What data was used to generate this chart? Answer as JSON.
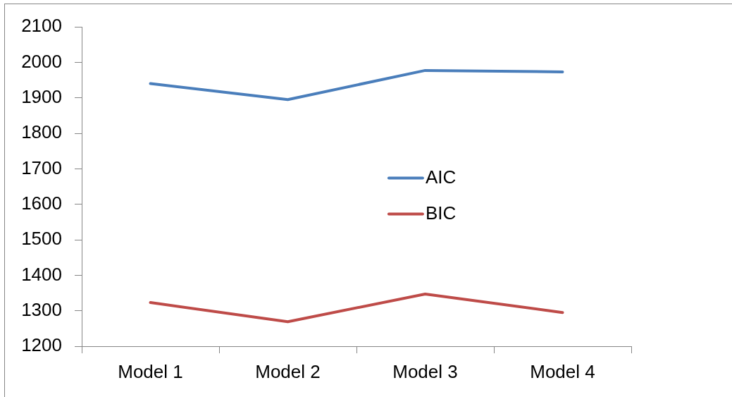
{
  "chart_data": {
    "type": "line",
    "categories": [
      "Model 1",
      "Model 2",
      "Model 3",
      "Model 4"
    ],
    "series": [
      {
        "name": "AIC",
        "color": "#4a7ebb",
        "values": [
          1940,
          1895,
          1977,
          1973
        ]
      },
      {
        "name": "BIC",
        "color": "#be4b48",
        "values": [
          1323,
          1269,
          1347,
          1295
        ]
      }
    ],
    "ylim": [
      1200,
      2100
    ],
    "yticks": [
      1200,
      1300,
      1400,
      1500,
      1600,
      1700,
      1800,
      1900,
      2000,
      2100
    ],
    "legend": "center"
  }
}
